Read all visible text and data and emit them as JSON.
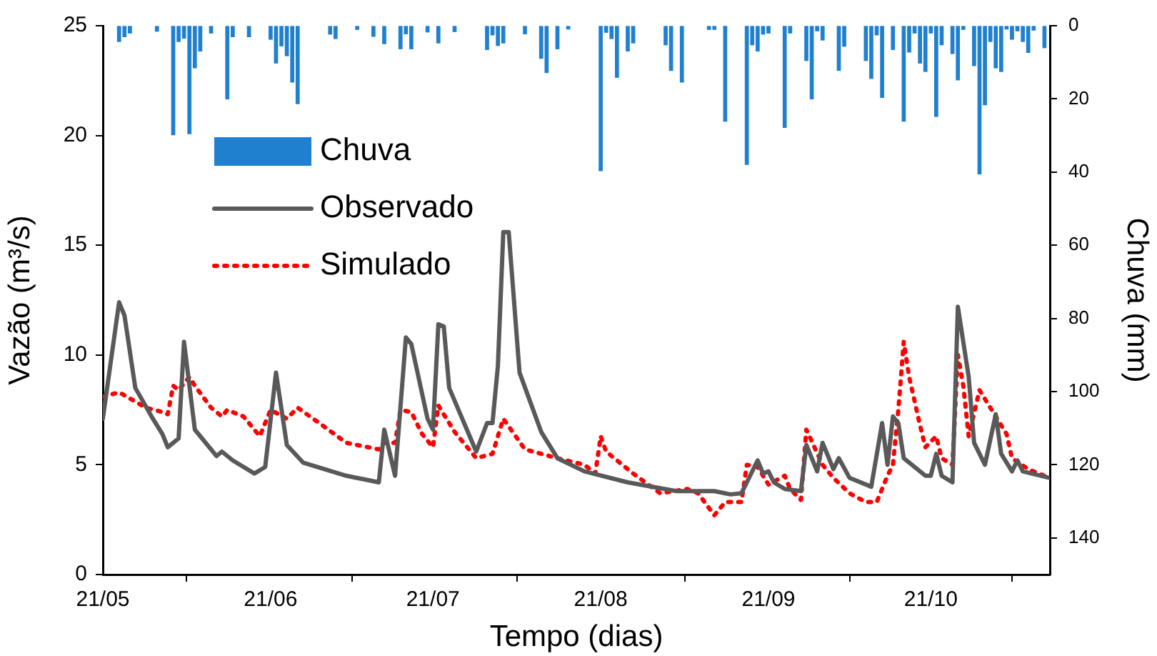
{
  "chart_data": {
    "type": "line",
    "xlabel": "Tempo (dias)",
    "ylabel": "Vazão (m³/s)",
    "y2label": "Chuva (mm)",
    "xlim": [
      "--05-21",
      "--11-12"
    ],
    "xticks": [
      {
        "value": "--05-21",
        "label": "21/05"
      },
      {
        "value": "--06-21",
        "label": "21/06"
      },
      {
        "value": "--07-21",
        "label": "21/07"
      },
      {
        "value": "--08-21",
        "label": "21/08"
      },
      {
        "value": "--09-21",
        "label": "21/09"
      },
      {
        "value": "--10-21",
        "label": "21/10"
      }
    ],
    "ylim": [
      0,
      25
    ],
    "yticks": [
      0,
      5,
      10,
      15,
      20,
      25
    ],
    "y2lim": [
      150,
      0
    ],
    "y2ticks": [
      0,
      20,
      40,
      60,
      80,
      100,
      120,
      140
    ],
    "grid": false,
    "legend": "top left",
    "marker": "none",
    "series": [
      {
        "name": "Chuva",
        "type": "bar",
        "axis": "y2",
        "color": "#1f80d0",
        "x": [
          "--05-24",
          "--05-25",
          "--05-26",
          "--05-31",
          "--06-03",
          "--06-04",
          "--06-05",
          "--06-06",
          "--06-07",
          "--06-08",
          "--06-10",
          "--06-13",
          "--06-14",
          "--06-17",
          "--06-21",
          "--06-22",
          "--06-23",
          "--06-24",
          "--06-25",
          "--06-26",
          "--07-02",
          "--07-03",
          "--07-07",
          "--07-10",
          "--07-12",
          "--07-15",
          "--07-16",
          "--07-17",
          "--07-20",
          "--07-22",
          "--07-25",
          "--07-31",
          "--08-01",
          "--08-02",
          "--08-03",
          "--08-07",
          "--08-10",
          "--08-11",
          "--08-13",
          "--08-15",
          "--08-21",
          "--08-22",
          "--08-23",
          "--08-24",
          "--08-26",
          "--08-27",
          "--09-02",
          "--09-03",
          "--09-05",
          "--09-10",
          "--09-11",
          "--09-13",
          "--09-17",
          "--09-18",
          "--09-19",
          "--09-20",
          "--09-21",
          "--09-24",
          "--09-25",
          "--09-28",
          "--09-29",
          "--09-30",
          "--10-01",
          "--10-04",
          "--10-05",
          "--10-09",
          "--10-10",
          "--10-11",
          "--10-12",
          "--10-14",
          "--10-16",
          "--10-17",
          "--10-18",
          "--10-19",
          "--10-20",
          "--10-21",
          "--10-22",
          "--10-23",
          "--10-25",
          "--10-26",
          "--10-27",
          "--10-29",
          "--10-30",
          "--10-31",
          "--11-01",
          "--11-02",
          "--11-03",
          "--11-04",
          "--11-05",
          "--11-06",
          "--11-07",
          "--11-08",
          "--11-09",
          "--11-11"
        ],
        "values": [
          4.3,
          3,
          2,
          1.5,
          29.8,
          4.3,
          3.4,
          29.5,
          11.5,
          6.9,
          2,
          20,
          3,
          3,
          3.7,
          10.2,
          5.5,
          8.2,
          15.4,
          21.3,
          2.3,
          3.5,
          1,
          2.9,
          4.9,
          6.3,
          2.2,
          6.3,
          1.7,
          4.7,
          1.6,
          6.5,
          2.5,
          5.4,
          4.7,
          2.2,
          8.9,
          12.8,
          6.3,
          0.9,
          39.6,
          1.8,
          3.5,
          14.1,
          6.9,
          4.7,
          5.2,
          12.2,
          15.4,
          1,
          1,
          26.1,
          37.9,
          5.2,
          6.9,
          2.3,
          2,
          27.8,
          2,
          9.5,
          20,
          1.4,
          3.9,
          12.2,
          5.6,
          9.5,
          14.4,
          2.5,
          19.6,
          6.5,
          26.1,
          7.2,
          2,
          10.2,
          12.5,
          2,
          24.8,
          5.2,
          7.6,
          14.8,
          1,
          10.9,
          40.5,
          21.6,
          4.3,
          11.5,
          12.5,
          0.9,
          3.7,
          1.4,
          4.3,
          7.3,
          1.2,
          6
        ]
      },
      {
        "name": "Observado",
        "color": "#595959",
        "line_style": "solid",
        "x": [
          "--05-21",
          "--05-24",
          "--05-25",
          "--05-27",
          "--05-30",
          "--06-01",
          "--06-02",
          "--06-04",
          "--06-05",
          "--06-07",
          "--06-11",
          "--06-12",
          "--06-14",
          "--06-18",
          "--06-20",
          "--06-22",
          "--06-24",
          "--06-27",
          "--07-05",
          "--07-11",
          "--07-12",
          "--07-14",
          "--07-16",
          "--07-17",
          "--07-20",
          "--07-21",
          "--07-22",
          "--07-23",
          "--07-24",
          "--07-29",
          "--07-31",
          "--08-01",
          "--08-02",
          "--08-03",
          "--08-04",
          "--08-06",
          "--08-10",
          "--08-13",
          "--08-18",
          "--08-26",
          "--09-04",
          "--09-11",
          "--09-14",
          "--09-16",
          "--09-19",
          "--09-20",
          "--09-21",
          "--09-22",
          "--09-24",
          "--09-27",
          "--09-28",
          "--09-30",
          "--10-01",
          "--10-03",
          "--10-04",
          "--10-06",
          "--10-10",
          "--10-12",
          "--10-13",
          "--10-14",
          "--10-15",
          "--10-16",
          "--10-20",
          "--10-21",
          "--10-22",
          "--10-23",
          "--10-25",
          "--10-26",
          "--10-28",
          "--10-29",
          "--10-31",
          "--11-02",
          "--11-03",
          "--11-05",
          "--11-06",
          "--11-07",
          "--11-12"
        ],
        "values": [
          7.1,
          12.4,
          11.8,
          8.5,
          7.2,
          6.4,
          5.8,
          6.2,
          10.6,
          6.6,
          5.4,
          5.6,
          5.2,
          4.6,
          4.9,
          9.2,
          5.9,
          5.1,
          4.5,
          4.2,
          6.6,
          4.5,
          10.8,
          10.5,
          7.1,
          6.6,
          11.4,
          11.3,
          8.5,
          5.6,
          6.9,
          6.9,
          9.5,
          15.6,
          15.6,
          9.2,
          6.5,
          5.3,
          4.7,
          4.2,
          3.8,
          3.8,
          3.65,
          3.7,
          5.2,
          4.6,
          4.7,
          4.2,
          3.9,
          3.8,
          5.9,
          4.7,
          6.0,
          4.8,
          5.3,
          4.4,
          4.0,
          6.9,
          5.0,
          7.2,
          6.9,
          5.3,
          4.5,
          4.5,
          5.5,
          4.5,
          4.2,
          12.2,
          9.0,
          6.0,
          5.0,
          7.3,
          5.5,
          4.7,
          5.2,
          4.7,
          4.4
        ]
      },
      {
        "name": "Simulado",
        "color": "#ff0000",
        "line_style": "dotted",
        "x": [
          "--05-21",
          "--05-24",
          "--05-29",
          "--06-01",
          "--06-02",
          "--06-03",
          "--06-04",
          "--06-06",
          "--06-07",
          "--06-10",
          "--06-12",
          "--06-13",
          "--06-16",
          "--06-19",
          "--06-21",
          "--06-24",
          "--06-26",
          "--06-30",
          "--07-05",
          "--07-11",
          "--07-12",
          "--07-14",
          "--07-15",
          "--07-17",
          "--07-19",
          "--07-21",
          "--07-22",
          "--07-25",
          "--07-29",
          "--08-01",
          "--08-03",
          "--08-05",
          "--08-07",
          "--08-13",
          "--08-18",
          "--08-20",
          "--08-21",
          "--08-22",
          "--08-27",
          "--09-01",
          "--09-06",
          "--09-08",
          "--09-11",
          "--09-13",
          "--09-16",
          "--09-17",
          "--09-19",
          "--09-21",
          "--09-24",
          "--09-25",
          "--09-27",
          "--09-28",
          "--10-01",
          "--10-03",
          "--10-06",
          "--10-09",
          "--10-11",
          "--10-13",
          "--10-14",
          "--10-15",
          "--10-16",
          "--10-17",
          "--10-19",
          "--10-20",
          "--10-22",
          "--10-23",
          "--10-25",
          "--10-26",
          "--10-27",
          "--10-28",
          "--10-30",
          "--11-01",
          "--11-04",
          "--11-05",
          "--11-08",
          "--11-12"
        ],
        "values": [
          8.1,
          8.3,
          7.6,
          7.4,
          7.3,
          8.6,
          8.4,
          9.0,
          8.6,
          7.6,
          7.2,
          7.5,
          7.2,
          6.3,
          7.5,
          7.1,
          7.6,
          6.9,
          6.0,
          5.7,
          6.0,
          6.0,
          7.5,
          7.4,
          6.4,
          5.8,
          7.7,
          6.5,
          5.3,
          5.5,
          7.1,
          6.4,
          5.7,
          5.3,
          5.0,
          4.6,
          6.3,
          5.6,
          4.6,
          3.7,
          3.9,
          3.7,
          2.7,
          3.3,
          3.3,
          5.0,
          4.9,
          4.1,
          4.5,
          3.9,
          3.4,
          6.6,
          5.0,
          4.4,
          3.7,
          3.3,
          3.3,
          4.5,
          5.0,
          7.5,
          10.6,
          9.0,
          6.8,
          5.8,
          6.3,
          5.3,
          5.0,
          10.0,
          8.6,
          6.3,
          8.4,
          7.6,
          6.4,
          5.3,
          4.8,
          4.4
        ]
      }
    ]
  }
}
